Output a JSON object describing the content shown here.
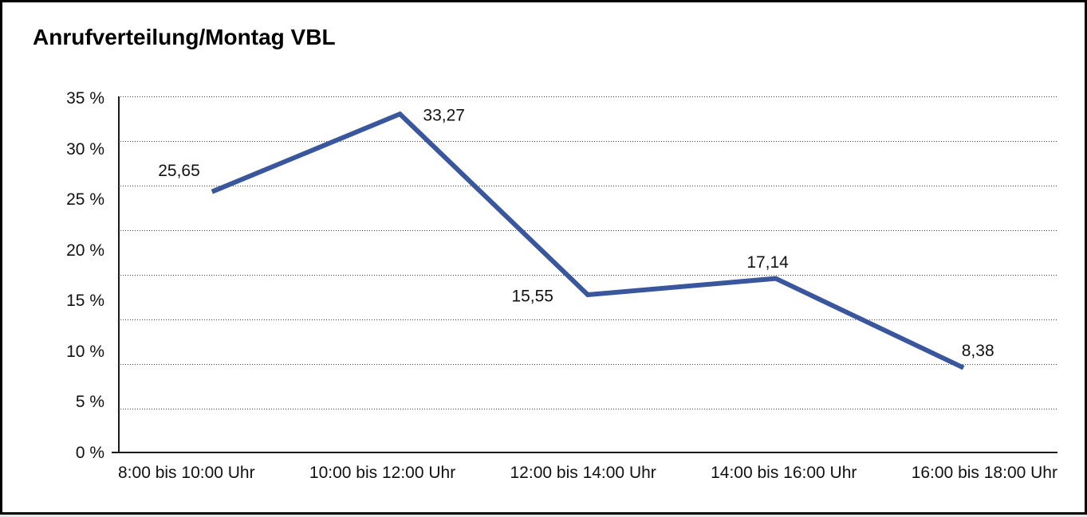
{
  "window": {
    "background_color": "#ffffff",
    "border_color": "#000000"
  },
  "chart_data": {
    "type": "line",
    "title": "Anrufverteilung/Montag VBL",
    "categories": [
      "8:00 bis 10:00 Uhr",
      "10:00 bis 12:00 Uhr",
      "12:00 bis 14:00 Uhr",
      "14:00 bis 16:00 Uhr",
      "16:00 bis 18:00 Uhr"
    ],
    "series": [
      {
        "values": [
          25.65,
          33.27,
          15.55,
          17.14,
          8.38
        ],
        "value_labels": [
          "25,65",
          "33,27",
          "15,55",
          "17,14",
          "8,38"
        ],
        "color": "#3a579d"
      }
    ],
    "y_axis": {
      "ticks": [
        "35 %",
        "30 %",
        "25 %",
        "20 %",
        "15 %",
        "10 %",
        "5 %",
        "0 %"
      ],
      "min": 0,
      "max": 35,
      "unit": "%"
    },
    "ylim": [
      0,
      35
    ],
    "grid": "horizontal-dotted",
    "grid_color": "#3c3c3c",
    "axis_color": "#1a1a1a",
    "legend": "none",
    "xlabel": "",
    "ylabel": ""
  }
}
